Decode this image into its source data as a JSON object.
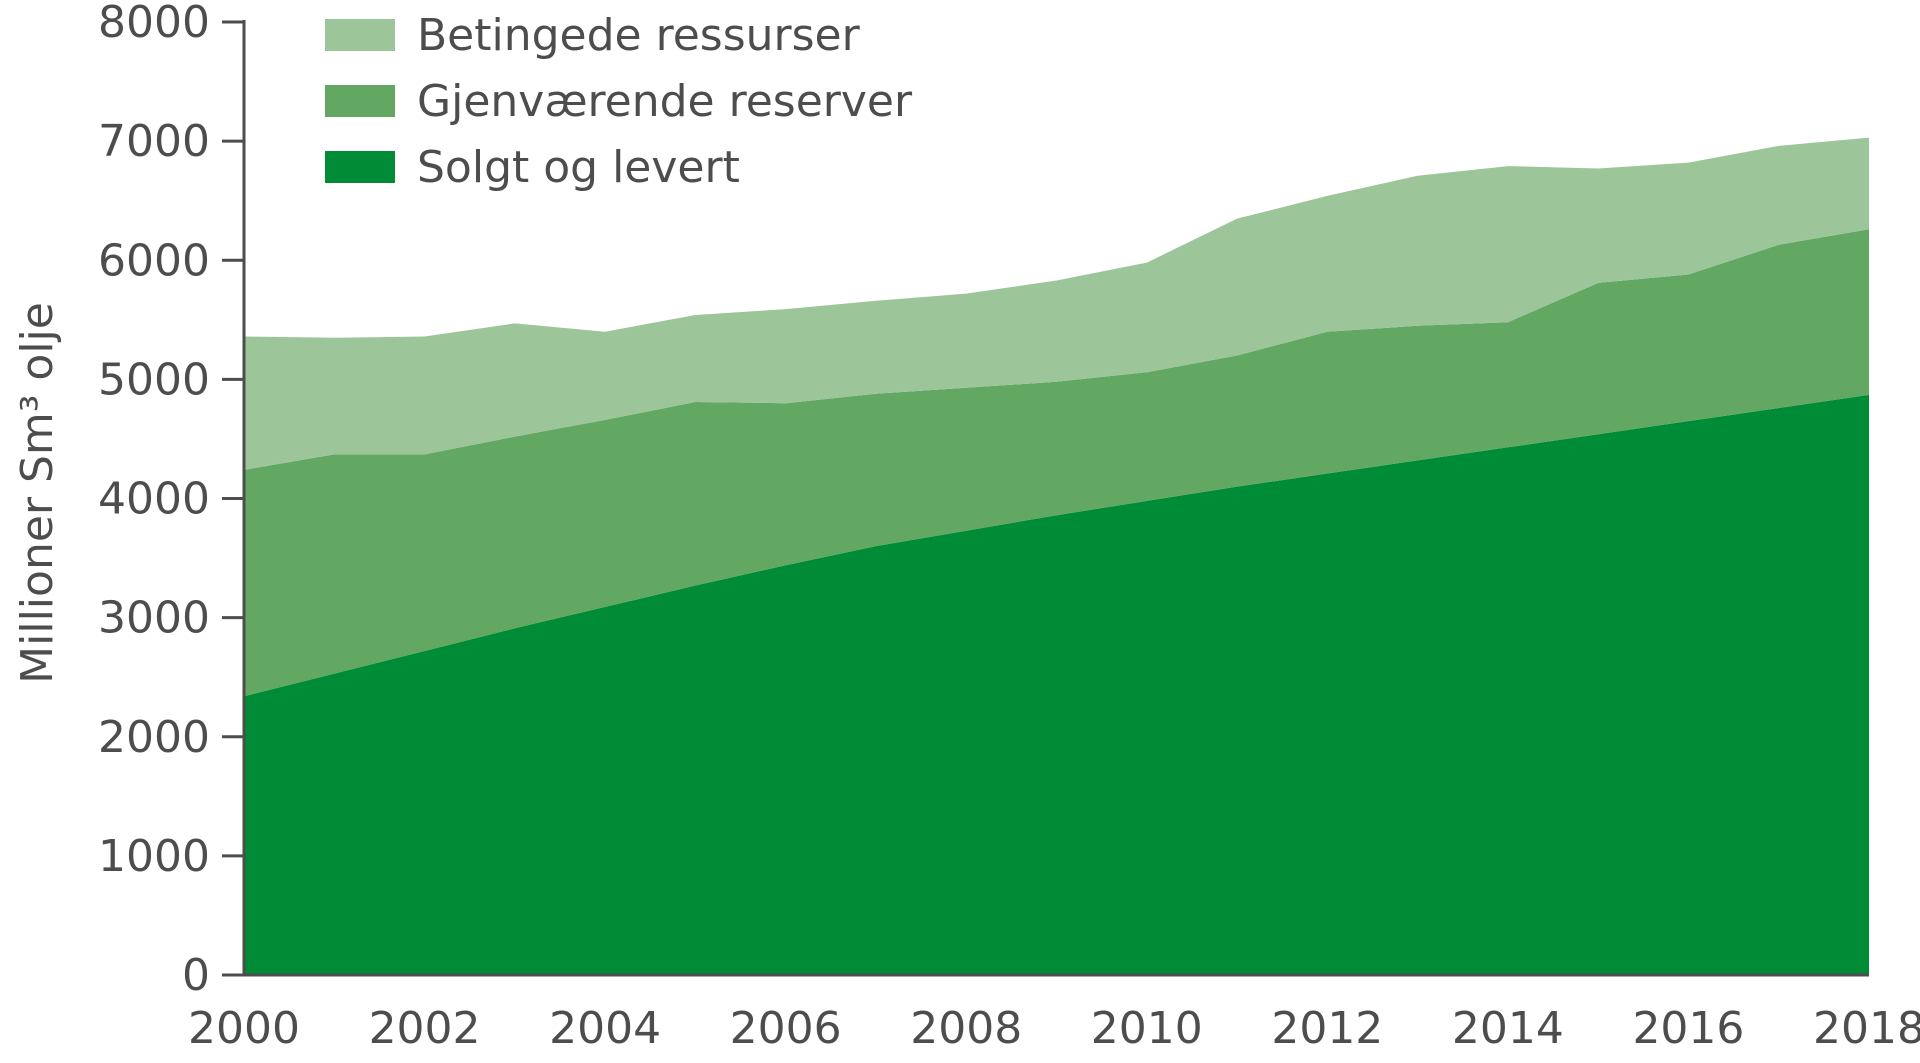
{
  "chart_data": {
    "type": "area",
    "stacked": true,
    "ylabel": "Millioner Sm³ olje",
    "xlabel": "",
    "ylim": [
      0,
      8000
    ],
    "yticks": [
      0,
      1000,
      2000,
      3000,
      4000,
      5000,
      6000,
      7000,
      8000
    ],
    "xlim": [
      2000,
      2018
    ],
    "xticks": [
      2000,
      2002,
      2004,
      2006,
      2008,
      2010,
      2012,
      2014,
      2016,
      2018
    ],
    "grid": false,
    "legend_position": "top-left",
    "x": [
      2000,
      2001,
      2002,
      2003,
      2004,
      2005,
      2006,
      2007,
      2008,
      2009,
      2010,
      2011,
      2012,
      2013,
      2014,
      2015,
      2016,
      2017,
      2018
    ],
    "series": [
      {
        "name": "Solgt og levert",
        "color": "#008c36",
        "values": [
          2340,
          2530,
          2720,
          2910,
          3090,
          3270,
          3440,
          3600,
          3730,
          3860,
          3980,
          4100,
          4210,
          4320,
          4430,
          4540,
          4650,
          4760,
          4870
        ]
      },
      {
        "name": "Gjenværende reserver",
        "color": "#62a762",
        "values": [
          1900,
          1840,
          1650,
          1610,
          1570,
          1540,
          1360,
          1280,
          1200,
          1120,
          1080,
          1100,
          1190,
          1130,
          1050,
          1270,
          1230,
          1370,
          1390
        ]
      },
      {
        "name": "Betingede ressurser",
        "color": "#9dc59a",
        "values": [
          1120,
          980,
          990,
          950,
          740,
          730,
          790,
          780,
          790,
          850,
          920,
          1150,
          1140,
          1260,
          1310,
          960,
          940,
          830,
          770
        ]
      }
    ],
    "legend_order": [
      "Betingede ressurser",
      "Gjenværende reserver",
      "Solgt og levert"
    ]
  }
}
